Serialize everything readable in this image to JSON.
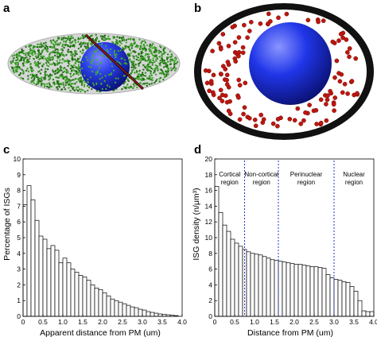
{
  "panels": [
    {
      "letter": "a"
    },
    {
      "letter": "b"
    },
    {
      "letter": "c"
    },
    {
      "letter": "d"
    }
  ],
  "colors": {
    "isg_green": "#2e8b1e",
    "nucleus_blue": "#1f33d6",
    "isg_red": "#c0160e",
    "boundary_line": "#9a1a14",
    "region_line": "#2233cc"
  },
  "chart_data": [
    {
      "panel": "c",
      "type": "bar",
      "xlabel": "Apparent distance from PM (um)",
      "ylabel": "Percentage of ISGs",
      "xlim": [
        0,
        4.0
      ],
      "ylim": [
        0,
        10
      ],
      "xticks": [
        "0",
        "0.5",
        "1.0",
        "1.5",
        "2.0",
        "2.5",
        "3.0",
        "3.5",
        "4.0"
      ],
      "yticks": [
        "0",
        "1",
        "2",
        "3",
        "4",
        "5",
        "6",
        "7",
        "8",
        "9",
        "10"
      ],
      "bin_width": 0.1,
      "bin_start": 0.05,
      "values": [
        7.1,
        8.3,
        7.4,
        6.1,
        5.1,
        4.9,
        4.3,
        4.5,
        4.2,
        3.4,
        3.7,
        3.4,
        3.0,
        2.8,
        2.6,
        2.5,
        2.3,
        2.0,
        1.8,
        1.7,
        1.5,
        1.3,
        1.1,
        1.0,
        0.9,
        0.8,
        0.7,
        0.6,
        0.55,
        0.45,
        0.4,
        0.3,
        0.25,
        0.2,
        0.15,
        0.12,
        0.1,
        0.07,
        0.05
      ]
    },
    {
      "panel": "d",
      "type": "bar",
      "xlabel": "Distance from PM (um)",
      "ylabel": "ISG density (n/μm³)",
      "xlim": [
        0,
        4.0
      ],
      "ylim": [
        0,
        20
      ],
      "xticks": [
        "0",
        "0.5",
        "1.0",
        "1.5",
        "2.0",
        "2.5",
        "3.0",
        "3.5",
        "4.0"
      ],
      "yticks": [
        "0",
        "2",
        "4",
        "6",
        "8",
        "10",
        "12",
        "14",
        "16",
        "18",
        "20"
      ],
      "bin_width": 0.1,
      "bin_start": 0.05,
      "values": [
        16.5,
        13.2,
        11.6,
        10.8,
        9.8,
        9.3,
        8.9,
        8.5,
        8.2,
        8.0,
        7.9,
        7.8,
        7.6,
        7.4,
        7.2,
        7.1,
        7.0,
        6.9,
        6.8,
        6.7,
        6.6,
        6.6,
        6.5,
        6.4,
        6.3,
        6.3,
        6.2,
        6.1,
        5.3,
        4.9,
        4.7,
        4.6,
        4.4,
        4.3,
        3.8,
        3.2,
        2.0,
        0.7,
        0.6,
        0.6,
        0.5,
        0.5,
        0.45,
        0.4,
        0.4,
        0.35,
        0.3,
        0.3,
        0.25,
        0.25,
        0.2,
        0.2,
        0.2,
        0.15,
        0.15,
        0.15,
        0.1,
        0.1,
        0.1,
        0.1,
        0.1,
        0.1,
        0.05,
        0.05,
        0.05,
        0.05,
        0.05,
        0.05,
        0.05,
        0.05
      ],
      "region_boundaries": [
        0.75,
        1.6,
        3.0
      ],
      "regions": [
        {
          "line1": "Cortical",
          "line2": "region"
        },
        {
          "line1": "Non-cortical",
          "line2": "region"
        },
        {
          "line1": "Perinuclear",
          "line2": "region"
        },
        {
          "line1": "Nuclear",
          "line2": "region"
        }
      ]
    }
  ]
}
